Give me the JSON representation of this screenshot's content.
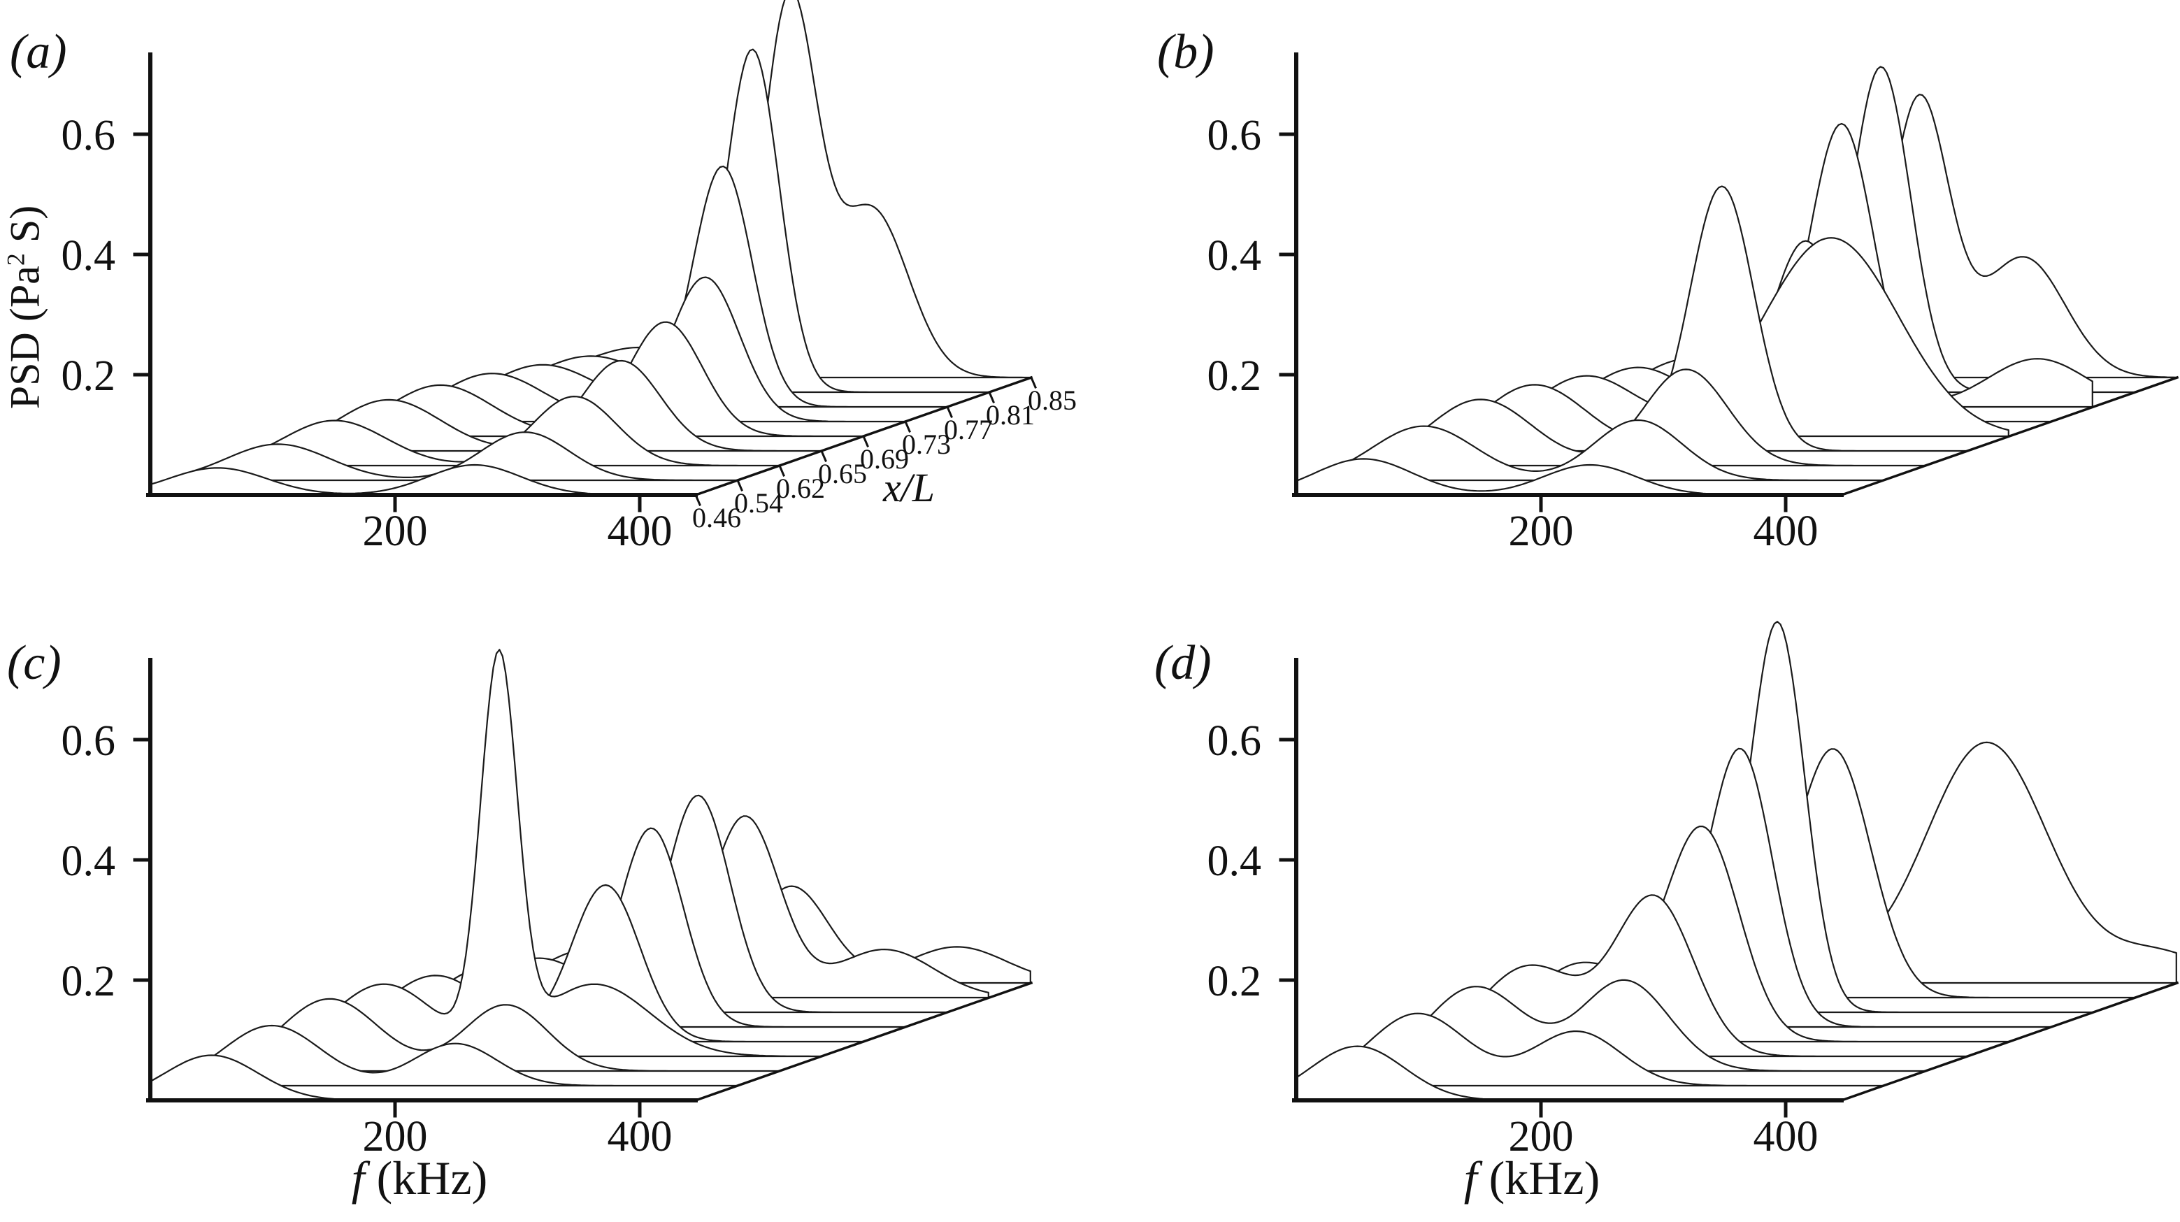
{
  "style": {
    "background": "#ffffff",
    "line_color": "#1a1a1a",
    "axis_color": "#111111"
  },
  "chart_data": [
    {
      "panel": "a",
      "panel_label": "(a)",
      "type": "line",
      "variant": "3d-waterfall",
      "x_axis": {
        "unit": "kHz",
        "ticks": [
          "200",
          "400"
        ],
        "range_khz": [
          0,
          445
        ]
      },
      "y_axis": {
        "label": "PSD (Pa2 S)",
        "label_parts": {
          "prefix": "PSD (Pa",
          "sup": "2",
          "suffix": " S)"
        },
        "ticks": [
          "0.2",
          "0.4",
          "0.6"
        ],
        "ylim": [
          0,
          0.72
        ]
      },
      "z_axis": {
        "label": "x/L",
        "ticks": [
          "0.46",
          "0.54",
          "0.62",
          "0.65",
          "0.69",
          "0.73",
          "0.77",
          "0.81",
          "0.85"
        ]
      },
      "stations_x_over_L": [
        0.46,
        0.54,
        0.62,
        0.65,
        0.69,
        0.73,
        0.77,
        0.81,
        0.85
      ],
      "series": [
        {
          "x_over_L": 0.46,
          "peaks": [
            {
              "f_khz": 55,
              "psd": 0.045,
              "sigma_khz": 40
            },
            {
              "f_khz": 265,
              "psd": 0.05,
              "sigma_khz": 38
            }
          ]
        },
        {
          "x_over_L": 0.54,
          "peaks": [
            {
              "f_khz": 70,
              "psd": 0.06,
              "sigma_khz": 42
            },
            {
              "f_khz": 272,
              "psd": 0.08,
              "sigma_khz": 36
            }
          ]
        },
        {
          "x_over_L": 0.62,
          "peaks": [
            {
              "f_khz": 82,
              "psd": 0.075,
              "sigma_khz": 42
            },
            {
              "f_khz": 278,
              "psd": 0.115,
              "sigma_khz": 34
            }
          ]
        },
        {
          "x_over_L": 0.65,
          "peaks": [
            {
              "f_khz": 92,
              "psd": 0.085,
              "sigma_khz": 42
            },
            {
              "f_khz": 282,
              "psd": 0.15,
              "sigma_khz": 32
            }
          ]
        },
        {
          "x_over_L": 0.69,
          "peaks": [
            {
              "f_khz": 100,
              "psd": 0.085,
              "sigma_khz": 42
            },
            {
              "f_khz": 284,
              "psd": 0.19,
              "sigma_khz": 30
            }
          ]
        },
        {
          "x_over_L": 0.73,
          "peaks": [
            {
              "f_khz": 108,
              "psd": 0.08,
              "sigma_khz": 42
            },
            {
              "f_khz": 282,
              "psd": 0.24,
              "sigma_khz": 28
            }
          ]
        },
        {
          "x_over_L": 0.77,
          "peaks": [
            {
              "f_khz": 115,
              "psd": 0.07,
              "sigma_khz": 42
            },
            {
              "f_khz": 262,
              "psd": 0.4,
              "sigma_khz": 24
            }
          ]
        },
        {
          "x_over_L": 0.81,
          "peaks": [
            {
              "f_khz": 120,
              "psd": 0.06,
              "sigma_khz": 42
            },
            {
              "f_khz": 252,
              "psd": 0.57,
              "sigma_khz": 22
            }
          ]
        },
        {
          "x_over_L": 0.85,
          "peaks": [
            {
              "f_khz": 125,
              "psd": 0.05,
              "sigma_khz": 42
            },
            {
              "f_khz": 248,
              "psd": 0.62,
              "sigma_khz": 22
            },
            {
              "f_khz": 315,
              "psd": 0.28,
              "sigma_khz": 30
            }
          ]
        }
      ]
    },
    {
      "panel": "b",
      "panel_label": "(b)",
      "type": "line",
      "variant": "3d-waterfall",
      "x_axis": {
        "unit": "kHz",
        "ticks": [
          "200",
          "400"
        ],
        "range_khz": [
          0,
          445
        ]
      },
      "y_axis": {
        "ticks": [
          "0.2",
          "0.4",
          "0.6"
        ],
        "ylim": [
          0,
          0.72
        ]
      },
      "z_axis": {
        "ticks": []
      },
      "stations_x_over_L": [
        0.46,
        0.54,
        0.62,
        0.65,
        0.69,
        0.73,
        0.77,
        0.81,
        0.85
      ],
      "series": [
        {
          "x_over_L": 0.46,
          "peaks": [
            {
              "f_khz": 55,
              "psd": 0.06,
              "sigma_khz": 40
            },
            {
              "f_khz": 240,
              "psd": 0.05,
              "sigma_khz": 38
            }
          ]
        },
        {
          "x_over_L": 0.54,
          "peaks": [
            {
              "f_khz": 70,
              "psd": 0.09,
              "sigma_khz": 42
            },
            {
              "f_khz": 245,
              "psd": 0.1,
              "sigma_khz": 36
            }
          ]
        },
        {
          "x_over_L": 0.62,
          "peaks": [
            {
              "f_khz": 82,
              "psd": 0.11,
              "sigma_khz": 42
            },
            {
              "f_khz": 250,
              "psd": 0.16,
              "sigma_khz": 34
            }
          ]
        },
        {
          "x_over_L": 0.65,
          "peaks": [
            {
              "f_khz": 92,
              "psd": 0.11,
              "sigma_khz": 42
            },
            {
              "f_khz": 245,
              "psd": 0.44,
              "sigma_khz": 26
            }
          ]
        },
        {
          "x_over_L": 0.69,
          "peaks": [
            {
              "f_khz": 100,
              "psd": 0.1,
              "sigma_khz": 42
            },
            {
              "f_khz": 300,
              "psd": 0.33,
              "sigma_khz": 55
            }
          ]
        },
        {
          "x_over_L": 0.73,
          "peaks": [
            {
              "f_khz": 108,
              "psd": 0.09,
              "sigma_khz": 42
            },
            {
              "f_khz": 245,
              "psd": 0.3,
              "sigma_khz": 28
            }
          ]
        },
        {
          "x_over_L": 0.77,
          "peaks": [
            {
              "f_khz": 115,
              "psd": 0.08,
              "sigma_khz": 42
            },
            {
              "f_khz": 240,
              "psd": 0.47,
              "sigma_khz": 26
            },
            {
              "f_khz": 400,
              "psd": 0.08,
              "sigma_khz": 40
            }
          ]
        },
        {
          "x_over_L": 0.81,
          "peaks": [
            {
              "f_khz": 120,
              "psd": 0.07,
              "sigma_khz": 42
            },
            {
              "f_khz": 238,
              "psd": 0.54,
              "sigma_khz": 24
            }
          ]
        },
        {
          "x_over_L": 0.85,
          "peaks": [
            {
              "f_khz": 125,
              "psd": 0.06,
              "sigma_khz": 42
            },
            {
              "f_khz": 235,
              "psd": 0.46,
              "sigma_khz": 24
            },
            {
              "f_khz": 320,
              "psd": 0.2,
              "sigma_khz": 34
            }
          ]
        }
      ]
    },
    {
      "panel": "c",
      "panel_label": "(c)",
      "type": "line",
      "variant": "3d-waterfall",
      "x_axis": {
        "label": "f (kHz)",
        "label_italic": "f",
        "label_rest": " (kHz)",
        "unit": "kHz",
        "ticks": [
          "200",
          "400"
        ],
        "range_khz": [
          0,
          445
        ]
      },
      "y_axis": {
        "ticks": [
          "0.2",
          "0.4",
          "0.6"
        ],
        "ylim": [
          0,
          0.72
        ]
      },
      "z_axis": {
        "ticks": []
      },
      "stations_x_over_L": [
        0.46,
        0.54,
        0.62,
        0.65,
        0.69,
        0.73,
        0.77,
        0.81,
        0.85
      ],
      "series": [
        {
          "x_over_L": 0.46,
          "peaks": [
            {
              "f_khz": 50,
              "psd": 0.075,
              "sigma_khz": 38
            }
          ]
        },
        {
          "x_over_L": 0.54,
          "peaks": [
            {
              "f_khz": 65,
              "psd": 0.1,
              "sigma_khz": 40
            },
            {
              "f_khz": 215,
              "psd": 0.07,
              "sigma_khz": 34
            }
          ]
        },
        {
          "x_over_L": 0.62,
          "peaks": [
            {
              "f_khz": 78,
              "psd": 0.12,
              "sigma_khz": 40
            },
            {
              "f_khz": 222,
              "psd": 0.11,
              "sigma_khz": 34
            }
          ]
        },
        {
          "x_over_L": 0.65,
          "peaks": [
            {
              "f_khz": 88,
              "psd": 0.12,
              "sigma_khz": 42
            },
            {
              "f_khz": 182,
              "psd": 0.64,
              "sigma_khz": 15
            },
            {
              "f_khz": 260,
              "psd": 0.12,
              "sigma_khz": 45
            }
          ]
        },
        {
          "x_over_L": 0.69,
          "peaks": [
            {
              "f_khz": 96,
              "psd": 0.11,
              "sigma_khz": 42
            },
            {
              "f_khz": 235,
              "psd": 0.26,
              "sigma_khz": 28
            }
          ]
        },
        {
          "x_over_L": 0.73,
          "peaks": [
            {
              "f_khz": 105,
              "psd": 0.1,
              "sigma_khz": 42
            },
            {
              "f_khz": 238,
              "psd": 0.33,
              "sigma_khz": 26
            }
          ]
        },
        {
          "x_over_L": 0.77,
          "peaks": [
            {
              "f_khz": 112,
              "psd": 0.09,
              "sigma_khz": 42
            },
            {
              "f_khz": 242,
              "psd": 0.36,
              "sigma_khz": 26
            }
          ]
        },
        {
          "x_over_L": 0.81,
          "peaks": [
            {
              "f_khz": 118,
              "psd": 0.08,
              "sigma_khz": 42
            },
            {
              "f_khz": 246,
              "psd": 0.3,
              "sigma_khz": 28
            },
            {
              "f_khz": 360,
              "psd": 0.08,
              "sigma_khz": 40
            }
          ]
        },
        {
          "x_over_L": 0.85,
          "peaks": [
            {
              "f_khz": 122,
              "psd": 0.07,
              "sigma_khz": 42
            },
            {
              "f_khz": 250,
              "psd": 0.16,
              "sigma_khz": 30
            },
            {
              "f_khz": 385,
              "psd": 0.06,
              "sigma_khz": 40
            }
          ]
        }
      ]
    },
    {
      "panel": "d",
      "panel_label": "(d)",
      "type": "line",
      "variant": "3d-waterfall",
      "x_axis": {
        "label": "f (kHz)",
        "label_italic": "f",
        "label_rest": " (kHz)",
        "unit": "kHz",
        "ticks": [
          "200",
          "400"
        ],
        "range_khz": [
          0,
          445
        ]
      },
      "y_axis": {
        "ticks": [
          "0.2",
          "0.4",
          "0.6"
        ],
        "ylim": [
          0,
          0.72
        ]
      },
      "z_axis": {
        "ticks": []
      },
      "stations_x_over_L": [
        0.46,
        0.54,
        0.62,
        0.65,
        0.69,
        0.73,
        0.77,
        0.81,
        0.85
      ],
      "series": [
        {
          "x_over_L": 0.46,
          "peaks": [
            {
              "f_khz": 50,
              "psd": 0.09,
              "sigma_khz": 38
            }
          ]
        },
        {
          "x_over_L": 0.54,
          "peaks": [
            {
              "f_khz": 65,
              "psd": 0.12,
              "sigma_khz": 40
            },
            {
              "f_khz": 195,
              "psd": 0.09,
              "sigma_khz": 36
            }
          ]
        },
        {
          "x_over_L": 0.62,
          "peaks": [
            {
              "f_khz": 78,
              "psd": 0.14,
              "sigma_khz": 40
            },
            {
              "f_khz": 200,
              "psd": 0.15,
              "sigma_khz": 36
            }
          ]
        },
        {
          "x_over_L": 0.65,
          "peaks": [
            {
              "f_khz": 88,
              "psd": 0.15,
              "sigma_khz": 42
            },
            {
              "f_khz": 190,
              "psd": 0.26,
              "sigma_khz": 32
            }
          ]
        },
        {
          "x_over_L": 0.69,
          "peaks": [
            {
              "f_khz": 96,
              "psd": 0.13,
              "sigma_khz": 42
            },
            {
              "f_khz": 195,
              "psd": 0.35,
              "sigma_khz": 30
            }
          ]
        },
        {
          "x_over_L": 0.73,
          "peaks": [
            {
              "f_khz": 105,
              "psd": 0.11,
              "sigma_khz": 42
            },
            {
              "f_khz": 192,
              "psd": 0.45,
              "sigma_khz": 26
            }
          ]
        },
        {
          "x_over_L": 0.77,
          "peaks": [
            {
              "f_khz": 112,
              "psd": 0.1,
              "sigma_khz": 42
            },
            {
              "f_khz": 188,
              "psd": 0.63,
              "sigma_khz": 22
            }
          ]
        },
        {
          "x_over_L": 0.81,
          "peaks": [
            {
              "f_khz": 118,
              "psd": 0.09,
              "sigma_khz": 42
            },
            {
              "f_khz": 200,
              "psd": 0.4,
              "sigma_khz": 30
            }
          ]
        },
        {
          "x_over_L": 0.85,
          "peaks": [
            {
              "f_khz": 122,
              "psd": 0.08,
              "sigma_khz": 42
            },
            {
              "f_khz": 290,
              "psd": 0.4,
              "sigma_khz": 50
            },
            {
              "f_khz": 430,
              "psd": 0.05,
              "sigma_khz": 40
            }
          ]
        }
      ]
    }
  ]
}
